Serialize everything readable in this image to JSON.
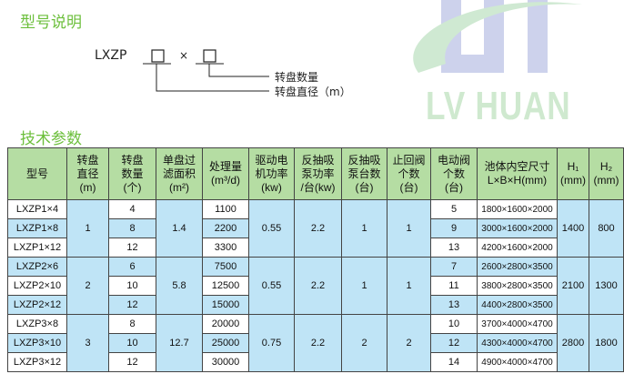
{
  "section1_title": "型号说明",
  "diagram": {
    "prefix": "LXZP",
    "times": "×",
    "label_count": "转盘数量",
    "label_diameter": "转盘直径（m）"
  },
  "watermark": {
    "text": "LV HUAN"
  },
  "section2_title": "技术参数",
  "headers": [
    [
      "型号"
    ],
    [
      "转盘",
      "直径",
      "(m)"
    ],
    [
      "转盘",
      "数量",
      "(个)"
    ],
    [
      "单盘过",
      "滤面积",
      "(m²)"
    ],
    [
      "处理量",
      "(m³/d)"
    ],
    [
      "驱动电",
      "机功率",
      "(kw)"
    ],
    [
      "反抽吸",
      "泵功率",
      "/台(kw)"
    ],
    [
      "反抽吸",
      "泵台数",
      "(台)"
    ],
    [
      "止回阀",
      "个数",
      "(台)"
    ],
    [
      "电动阀",
      "个数",
      "(台)"
    ],
    [
      "池体内空尺寸",
      "L×B×H(mm)"
    ],
    [
      "H₁",
      "(mm)"
    ],
    [
      "H₂",
      "(mm)"
    ]
  ],
  "groups": [
    {
      "diameter": "1",
      "area": "1.4",
      "motor": "0.55",
      "pump_power": "2.2",
      "pump_count": "1",
      "check_valves": "1",
      "h1": "1400",
      "h2": "800",
      "rows": [
        {
          "model": "LXZP1×4",
          "discs": "4",
          "capacity": "1100",
          "e_valves": "5",
          "size": "1800×1600×2000"
        },
        {
          "model": "LXZP1×8",
          "discs": "8",
          "capacity": "2200",
          "e_valves": "9",
          "size": "3000×1600×2000"
        },
        {
          "model": "LXZP1×12",
          "discs": "12",
          "capacity": "3300",
          "e_valves": "13",
          "size": "4200×1600×2000"
        }
      ]
    },
    {
      "diameter": "2",
      "area": "5.8",
      "motor": "0.55",
      "pump_power": "2.2",
      "pump_count": "1",
      "check_valves": "1",
      "h1": "2100",
      "h2": "1300",
      "rows": [
        {
          "model": "LXZP2×6",
          "discs": "6",
          "capacity": "7500",
          "e_valves": "7",
          "size": "2600×2800×3500"
        },
        {
          "model": "LXZP2×10",
          "discs": "10",
          "capacity": "12500",
          "e_valves": "11",
          "size": "3800×2800×3500"
        },
        {
          "model": "LXZP2×12",
          "discs": "12",
          "capacity": "15000",
          "e_valves": "13",
          "size": "4400×2800×3500"
        }
      ]
    },
    {
      "diameter": "3",
      "area": "12.7",
      "motor": "0.75",
      "pump_power": "2.2",
      "pump_count": "2",
      "check_valves": "2",
      "h1": "2800",
      "h2": "1800",
      "rows": [
        {
          "model": "LXZP3×8",
          "discs": "8",
          "capacity": "20000",
          "e_valves": "10",
          "size": "3700×4000×4700"
        },
        {
          "model": "LXZP3×10",
          "discs": "10",
          "capacity": "25000",
          "e_valves": "12",
          "size": "4300×4000×4700"
        },
        {
          "model": "LXZP3×12",
          "discs": "12",
          "capacity": "30000",
          "e_valves": "14",
          "size": "4900×4000×4700"
        }
      ]
    }
  ],
  "colors": {
    "title_green": "#6cbf3c",
    "header_green": "#b5dda3",
    "row_blue": "#bfe4f6"
  }
}
